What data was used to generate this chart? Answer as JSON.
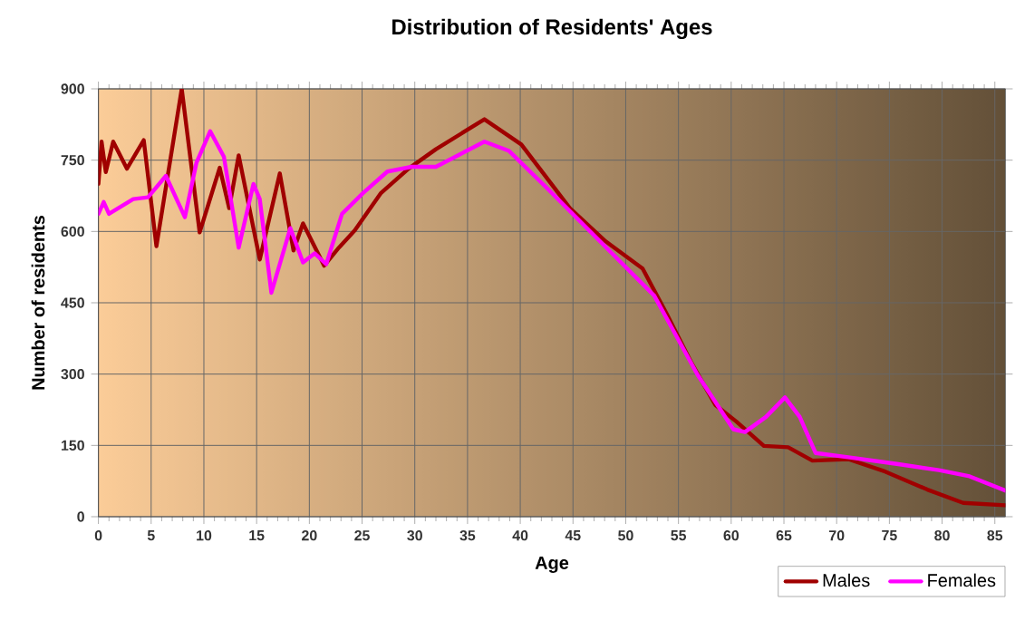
{
  "chart_data": {
    "type": "line",
    "title": "Distribution of Residents' Ages",
    "xlabel": "Age",
    "ylabel": "Number of residents",
    "xlim": [
      0,
      86
    ],
    "xticks": [
      0,
      5,
      10,
      15,
      20,
      25,
      30,
      35,
      40,
      45,
      50,
      55,
      60,
      65,
      70,
      75,
      80,
      85
    ],
    "ylim": [
      0,
      900
    ],
    "yticks": [
      0,
      150,
      300,
      450,
      600,
      750,
      900
    ],
    "grid": true,
    "legend": "bottom right",
    "marker": "none",
    "line_style": "solid",
    "series": [
      {
        "name": "Males",
        "color": "#a00000",
        "x": [
          0,
          0.3,
          0.7,
          1.4,
          2.7,
          4.3,
          5.5,
          7.9,
          9.6,
          11.5,
          12.4,
          13.3,
          15.3,
          17.2,
          18.5,
          19.4,
          21.4,
          22.8,
          24.3,
          26.8,
          29.4,
          32,
          36.6,
          40.1,
          44.7,
          48.1,
          51.6,
          53.9,
          56.2,
          58.5,
          60.5,
          63.1,
          65.4,
          67.7,
          71.1,
          74.6,
          78.6,
          82,
          86
        ],
        "values": [
          700,
          789,
          725,
          789,
          732,
          792,
          569,
          900,
          598,
          734,
          649,
          760,
          541,
          722,
          560,
          617,
          528,
          566,
          602,
          681,
          732,
          773,
          836,
          783,
          649,
          579,
          522,
          426,
          325,
          235,
          200,
          149,
          146,
          118,
          121,
          95,
          57,
          29,
          24
        ]
      },
      {
        "name": "Females",
        "color": "#ff00ff",
        "x": [
          0,
          0.5,
          1,
          3.3,
          4.7,
          6.4,
          8.2,
          9.3,
          10.6,
          11.9,
          13.3,
          14.7,
          15.3,
          16.4,
          18.2,
          19.4,
          20.5,
          21.6,
          23.1,
          25.1,
          27.4,
          29.7,
          32,
          36.6,
          38.9,
          42.4,
          48.7,
          52.7,
          56.8,
          60.2,
          61.3,
          63.3,
          65.1,
          66.5,
          68,
          71.1,
          75.7,
          79.7,
          82.6,
          86
        ],
        "values": [
          637,
          662,
          637,
          668,
          672,
          717,
          630,
          745,
          811,
          757,
          566,
          700,
          668,
          471,
          607,
          535,
          554,
          531,
          637,
          681,
          726,
          736,
          736,
          789,
          770,
          694,
          554,
          465,
          299,
          184,
          178,
          210,
          251,
          210,
          134,
          125,
          111,
          98,
          85,
          55
        ]
      }
    ]
  }
}
